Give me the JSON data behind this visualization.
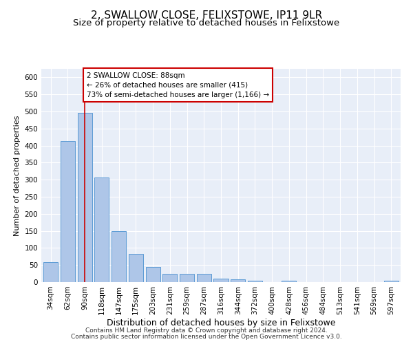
{
  "title": "2, SWALLOW CLOSE, FELIXSTOWE, IP11 9LR",
  "subtitle": "Size of property relative to detached houses in Felixstowe",
  "xlabel": "Distribution of detached houses by size in Felixstowe",
  "ylabel": "Number of detached properties",
  "categories": [
    "34sqm",
    "62sqm",
    "90sqm",
    "118sqm",
    "147sqm",
    "175sqm",
    "203sqm",
    "231sqm",
    "259sqm",
    "287sqm",
    "316sqm",
    "344sqm",
    "372sqm",
    "400sqm",
    "428sqm",
    "456sqm",
    "484sqm",
    "513sqm",
    "541sqm",
    "569sqm",
    "597sqm"
  ],
  "values": [
    58,
    413,
    495,
    307,
    150,
    82,
    45,
    25,
    25,
    25,
    10,
    8,
    5,
    0,
    5,
    0,
    0,
    0,
    0,
    0,
    5
  ],
  "bar_color": "#aec6e8",
  "bar_edge_color": "#5b9bd5",
  "highlight_bar_index": 2,
  "highlight_line_color": "#cc0000",
  "annotation_line1": "2 SWALLOW CLOSE: 88sqm",
  "annotation_line2": "← 26% of detached houses are smaller (415)",
  "annotation_line3": "73% of semi-detached houses are larger (1,166) →",
  "annotation_box_color": "#ffffff",
  "annotation_box_edge": "#cc0000",
  "ylim": [
    0,
    625
  ],
  "yticks": [
    0,
    50,
    100,
    150,
    200,
    250,
    300,
    350,
    400,
    450,
    500,
    550,
    600
  ],
  "background_color": "#e8eef8",
  "footer_line1": "Contains HM Land Registry data © Crown copyright and database right 2024.",
  "footer_line2": "Contains public sector information licensed under the Open Government Licence v3.0.",
  "title_fontsize": 11,
  "subtitle_fontsize": 9.5,
  "xlabel_fontsize": 9,
  "ylabel_fontsize": 8,
  "tick_fontsize": 7.5,
  "annotation_fontsize": 7.5,
  "footer_fontsize": 6.5
}
